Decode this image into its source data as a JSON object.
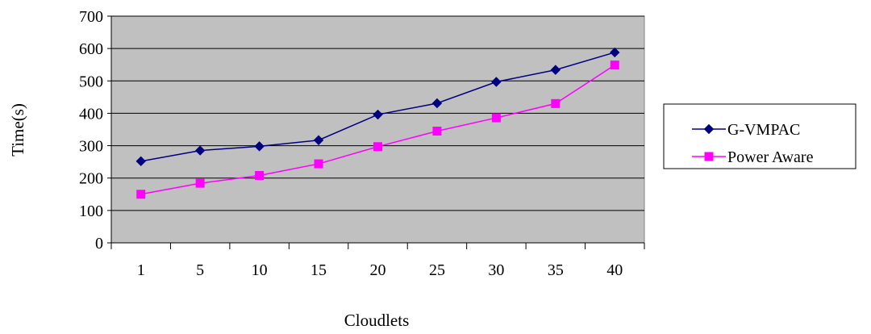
{
  "chart_data": {
    "type": "line",
    "xlabel": "Cloudlets",
    "ylabel": "Time(s)",
    "categories": [
      "1",
      "5",
      "10",
      "15",
      "20",
      "25",
      "30",
      "35",
      "40"
    ],
    "ylim": [
      0,
      700
    ],
    "yticks": [
      0,
      100,
      200,
      300,
      400,
      500,
      600,
      700
    ],
    "grid": true,
    "legend_position": "right",
    "plot_background": "#c0c0c0",
    "series": [
      {
        "name": "G-VMPAC",
        "color": "#000080",
        "marker": "diamond",
        "values": [
          252,
          285,
          298,
          317,
          396,
          431,
          497,
          534,
          588
        ]
      },
      {
        "name": "Power Aware",
        "color": "#ff00ff",
        "marker": "square",
        "values": [
          150,
          184,
          208,
          244,
          297,
          345,
          386,
          430,
          549
        ]
      }
    ]
  }
}
